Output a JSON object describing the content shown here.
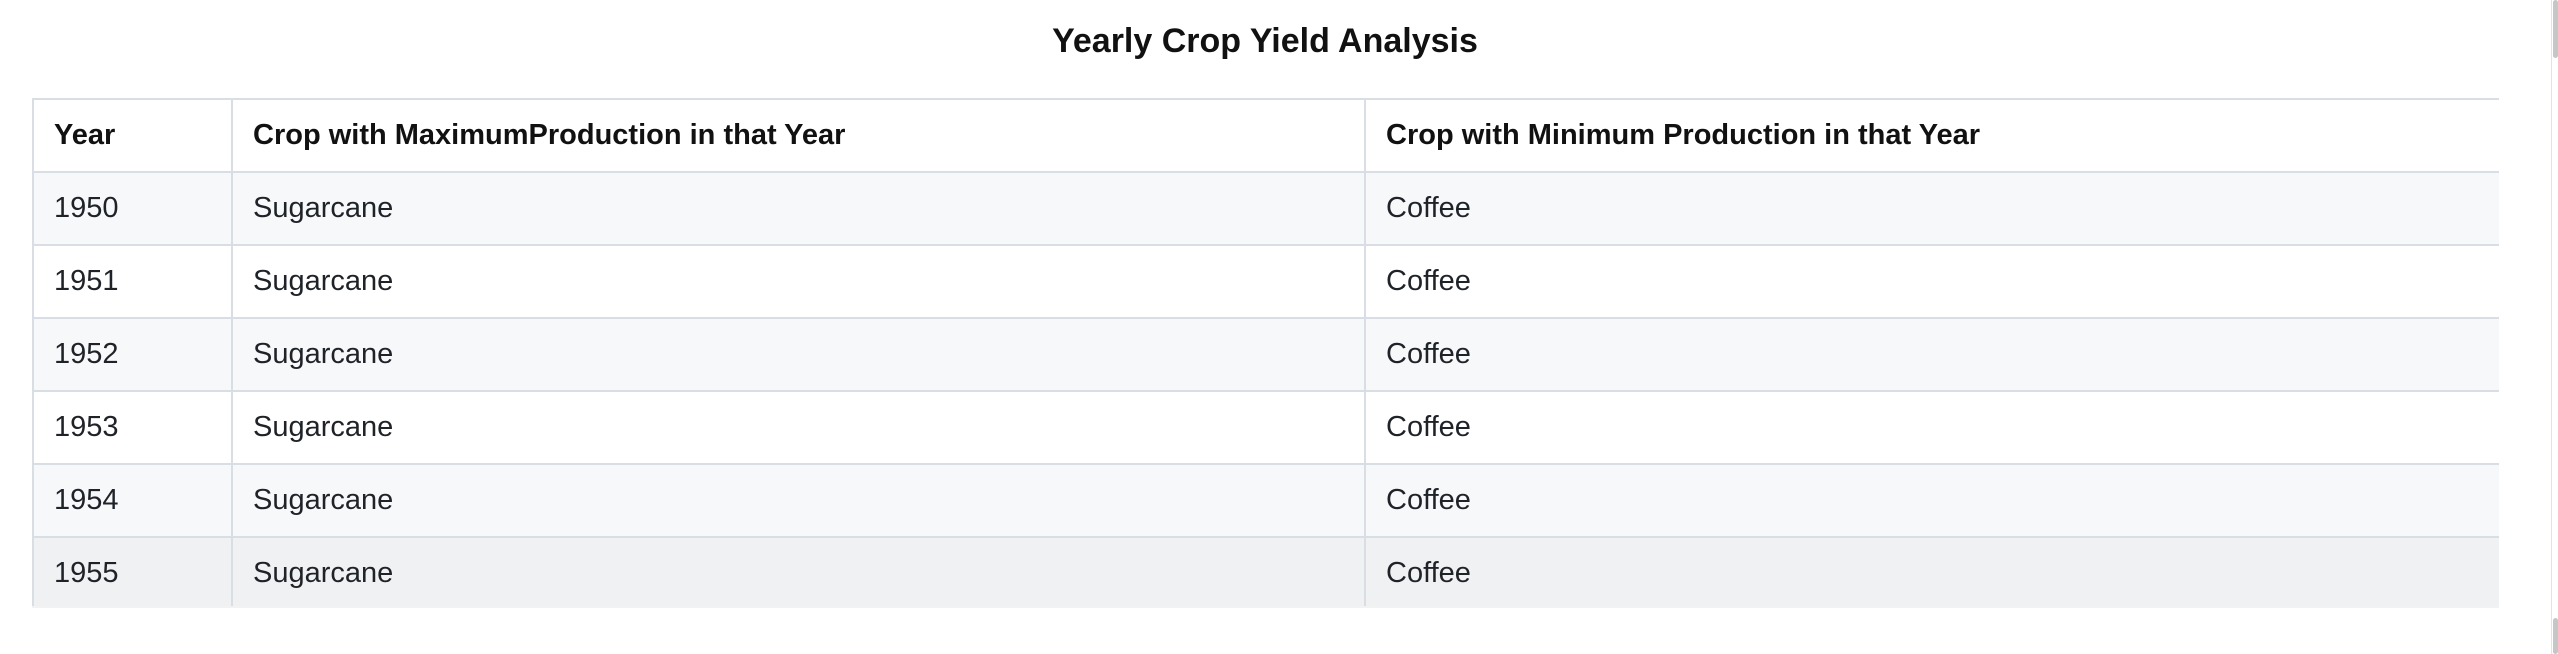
{
  "title": "Yearly Crop Yield Analysis",
  "table": {
    "headers": [
      "Year",
      "Crop with MaximumProduction in that Year",
      "Crop with Minimum Production in that Year"
    ],
    "rows": [
      [
        "1950",
        "Sugarcane",
        "Coffee"
      ],
      [
        "1951",
        "Sugarcane",
        "Coffee"
      ],
      [
        "1952",
        "Sugarcane",
        "Coffee"
      ],
      [
        "1953",
        "Sugarcane",
        "Coffee"
      ],
      [
        "1954",
        "Sugarcane",
        "Coffee"
      ],
      [
        "1955",
        "Sugarcane",
        "Coffee"
      ]
    ]
  }
}
